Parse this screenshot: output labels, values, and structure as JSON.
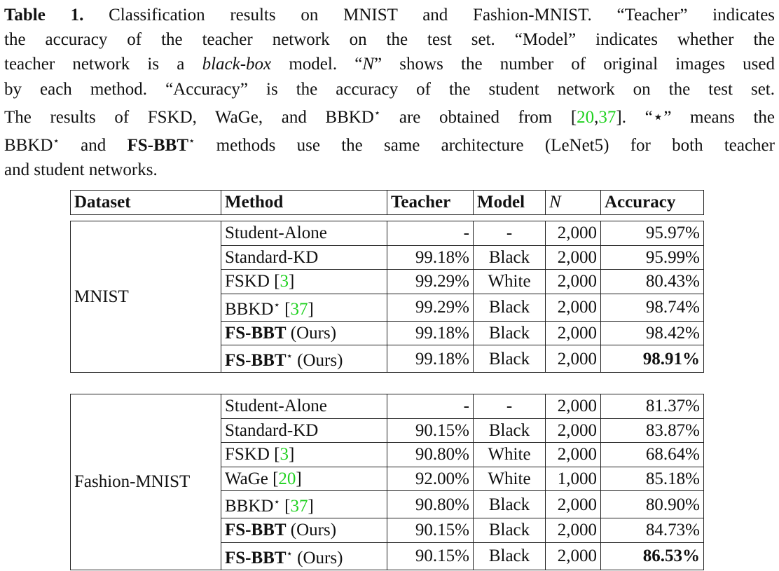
{
  "caption": {
    "label": "Table 1.",
    "lines": [
      "Classification results on MNIST and Fashion-MNIST. “Teacher” indicates",
      "the accuracy of the teacher network on the test set. “Model” indicates whether the",
      "teacher network is a",
      "black-box",
      "model. “",
      "N",
      "” shows the number of original images used",
      "by each method. “Accuracy” is the accuracy of the student network on the test set.",
      "The results of FSKD, WaGe, and BBKD",
      "⋆",
      " are obtained from [",
      "20",
      ",",
      "37",
      "]. “⋆” means the",
      "BBKD",
      "⋆",
      " and ",
      "FS-BBT",
      "⋆",
      " methods use the same architecture (LeNet5) for both teacher",
      "and student networks."
    ]
  },
  "table": {
    "headers": [
      "Dataset",
      "Method",
      "Teacher",
      "Model",
      "N",
      "Accuracy"
    ],
    "groups": [
      {
        "dataset": "MNIST",
        "rows": [
          {
            "method": "Student-Alone",
            "cite": "",
            "star": "",
            "suffix": "",
            "teacher": "-",
            "model": "-",
            "n": "2,000",
            "acc": "95.97%"
          },
          {
            "method": "Standard-KD",
            "cite": "",
            "star": "",
            "suffix": "",
            "teacher": "99.18%",
            "model": "Black",
            "n": "2,000",
            "acc": "95.99%"
          },
          {
            "method": "FSKD",
            "cite": "3",
            "star": "",
            "suffix": "",
            "teacher": "99.29%",
            "model": "White",
            "n": "2,000",
            "acc": "80.43%"
          },
          {
            "method": "BBKD",
            "cite": "37",
            "star": "⋆",
            "suffix": "",
            "teacher": "99.29%",
            "model": "Black",
            "n": "2,000",
            "acc": "98.74%"
          },
          {
            "method": "FS-BBT",
            "cite": "",
            "star": "",
            "suffix": "(Ours)",
            "teacher": "99.18%",
            "model": "Black",
            "n": "2,000",
            "acc": "98.42%"
          },
          {
            "method": "FS-BBT",
            "cite": "",
            "star": "⋆",
            "suffix": "(Ours)",
            "teacher": "99.18%",
            "model": "Black",
            "n": "2,000",
            "acc": "98.91%"
          }
        ]
      },
      {
        "dataset": "Fashion-MNIST",
        "rows": [
          {
            "method": "Student-Alone",
            "cite": "",
            "star": "",
            "suffix": "",
            "teacher": "-",
            "model": "-",
            "n": "2,000",
            "acc": "81.37%"
          },
          {
            "method": "Standard-KD",
            "cite": "",
            "star": "",
            "suffix": "",
            "teacher": "90.15%",
            "model": "Black",
            "n": "2,000",
            "acc": "83.87%"
          },
          {
            "method": "FSKD",
            "cite": "3",
            "star": "",
            "suffix": "",
            "teacher": "90.80%",
            "model": "White",
            "n": "2,000",
            "acc": "68.64%"
          },
          {
            "method": "WaGe",
            "cite": "20",
            "star": "",
            "suffix": "",
            "teacher": "92.00%",
            "model": "White",
            "n": "1,000",
            "acc": "85.18%"
          },
          {
            "method": "BBKD",
            "cite": "37",
            "star": "⋆",
            "suffix": "",
            "teacher": "90.80%",
            "model": "Black",
            "n": "2,000",
            "acc": "80.90%"
          },
          {
            "method": "FS-BBT",
            "cite": "",
            "star": "",
            "suffix": "(Ours)",
            "teacher": "90.15%",
            "model": "Black",
            "n": "2,000",
            "acc": "84.73%"
          },
          {
            "method": "FS-BBT",
            "cite": "",
            "star": "⋆",
            "suffix": "(Ours)",
            "teacher": "90.15%",
            "model": "Black",
            "n": "2,000",
            "acc": "86.53%"
          }
        ]
      }
    ]
  },
  "colors": {
    "citation": "#1fd11f",
    "text": "#111111"
  }
}
